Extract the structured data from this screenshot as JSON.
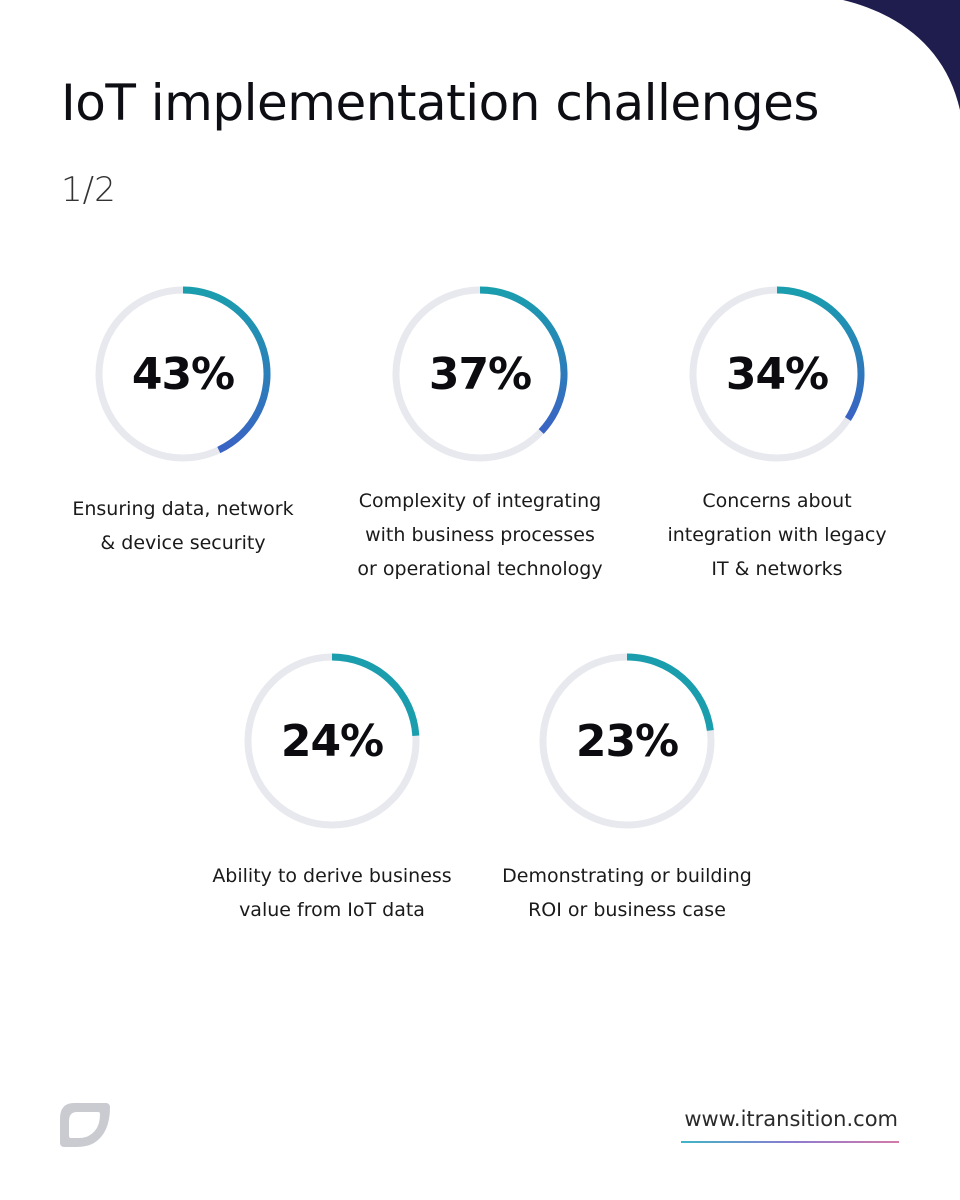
{
  "header": {
    "title": "IoT implementation challenges",
    "page_indicator": "1/2"
  },
  "colors": {
    "track": "#e8e9ee",
    "arc_start": "#1a9eae",
    "arc_end": "#3a63c4",
    "corner": "#1f1d4e",
    "logo": "#c9cbd1"
  },
  "chart_data": {
    "type": "donut",
    "items": [
      {
        "value": 43,
        "label": "43%",
        "caption": "Ensuring data, network\n& device security"
      },
      {
        "value": 37,
        "label": "37%",
        "caption": "Complexity of integrating\nwith business processes\nor operational technology"
      },
      {
        "value": 34,
        "label": "34%",
        "caption": "Concerns about\nintegration with legacy\nIT & networks"
      },
      {
        "value": 24,
        "label": "24%",
        "caption": "Ability to derive business\nvalue from IoT data"
      },
      {
        "value": 23,
        "label": "23%",
        "caption": "Demonstrating or building\nROI or business case"
      }
    ]
  },
  "footer": {
    "url": "www.itransition.com",
    "logo_icon": "itransition-logo-icon"
  }
}
